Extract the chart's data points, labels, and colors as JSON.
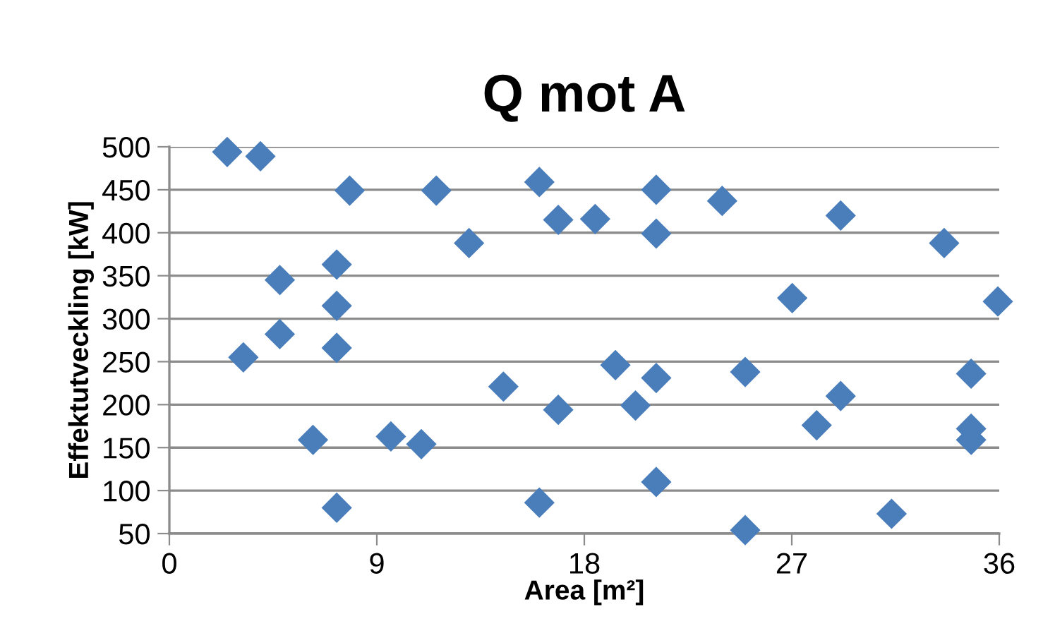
{
  "chart_data": {
    "type": "scatter",
    "title": "Q mot A",
    "xlabel": "Area [m²]",
    "ylabel": "Effektutveckling [kW]",
    "xlim": [
      0,
      36
    ],
    "xticks": [
      0,
      9,
      18,
      27,
      36
    ],
    "ylim": [
      50,
      500
    ],
    "yticks": [
      50,
      100,
      150,
      200,
      250,
      300,
      350,
      400,
      450,
      500
    ],
    "grid": "y",
    "marker": "diamond",
    "legend": false,
    "series": [
      {
        "color": "#4a7ebb",
        "x": [
          2.51,
          3.95,
          7.82,
          11.58,
          16.05,
          16.87,
          13.0,
          4.79,
          7.26,
          7.26,
          4.79,
          3.21,
          7.26,
          14.49,
          16.87,
          6.23,
          9.61,
          10.93,
          7.26,
          16.05,
          18.47,
          21.12,
          21.12,
          23.98,
          29.12,
          33.61,
          27.02,
          35.94,
          19.35,
          21.12,
          20.22,
          24.98,
          29.12,
          28.08,
          34.78,
          34.78,
          34.78,
          21.12,
          24.98,
          31.33
        ],
        "values": [
          494,
          489,
          449,
          449,
          459,
          415,
          388,
          345,
          363,
          315,
          282,
          255,
          266,
          221,
          194,
          159,
          163,
          154,
          80,
          86,
          416,
          450,
          399,
          437,
          420,
          388,
          324,
          320,
          246,
          231,
          199,
          238,
          210,
          176,
          236,
          172,
          159,
          110,
          54,
          73
        ]
      }
    ]
  }
}
